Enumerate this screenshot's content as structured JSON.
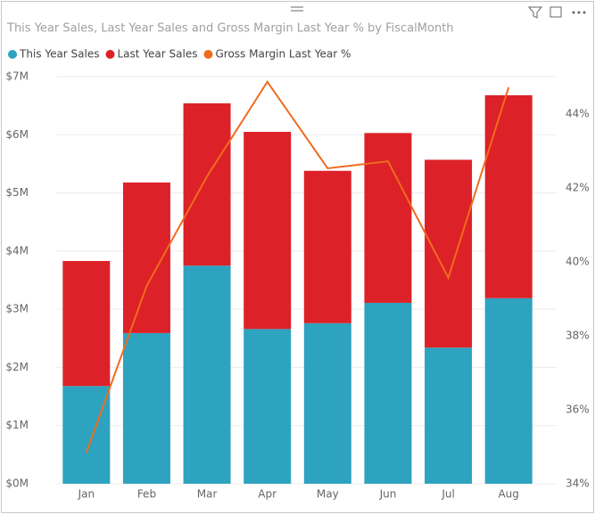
{
  "chart_data": {
    "type": "bar-line",
    "title": "This Year Sales, Last Year Sales and Gross Margin Last Year % by FiscalMonth",
    "categories": [
      "Jan",
      "Feb",
      "Mar",
      "Apr",
      "May",
      "Jun",
      "Jul",
      "Aug"
    ],
    "series": [
      {
        "name": "This Year Sales",
        "color": "#2ea3bf",
        "kind": "stacked-bar",
        "values": [
          1680000,
          2590000,
          3750000,
          2660000,
          2760000,
          3110000,
          2340000,
          3190000
        ]
      },
      {
        "name": "Last Year Sales",
        "color": "#dd2128",
        "kind": "stacked-bar",
        "values": [
          2150000,
          2590000,
          2790000,
          3390000,
          2620000,
          2920000,
          3230000,
          3490000
        ]
      },
      {
        "name": "Gross Margin Last Year %",
        "color": "#ef6c1f",
        "kind": "line",
        "axis": "y2",
        "values": [
          34.84,
          39.35,
          42.31,
          44.87,
          42.53,
          42.72,
          39.57,
          44.72
        ]
      }
    ],
    "ylim": [
      0,
      7000000
    ],
    "yticks": [
      {
        "value": 0,
        "label": "$0M"
      },
      {
        "value": 1000000,
        "label": "$1M"
      },
      {
        "value": 2000000,
        "label": "$2M"
      },
      {
        "value": 3000000,
        "label": "$3M"
      },
      {
        "value": 4000000,
        "label": "$4M"
      },
      {
        "value": 5000000,
        "label": "$5M"
      },
      {
        "value": 6000000,
        "label": "$6M"
      },
      {
        "value": 7000000,
        "label": "$7M"
      }
    ],
    "y2lim": [
      34,
      45.01
    ],
    "y2ticks": [
      {
        "value": 34,
        "label": "34%"
      },
      {
        "value": 36,
        "label": "36%"
      },
      {
        "value": 38,
        "label": "38%"
      },
      {
        "value": 40,
        "label": "40%"
      },
      {
        "value": 42,
        "label": "42%"
      },
      {
        "value": 44,
        "label": "44%"
      }
    ],
    "grid": true
  }
}
